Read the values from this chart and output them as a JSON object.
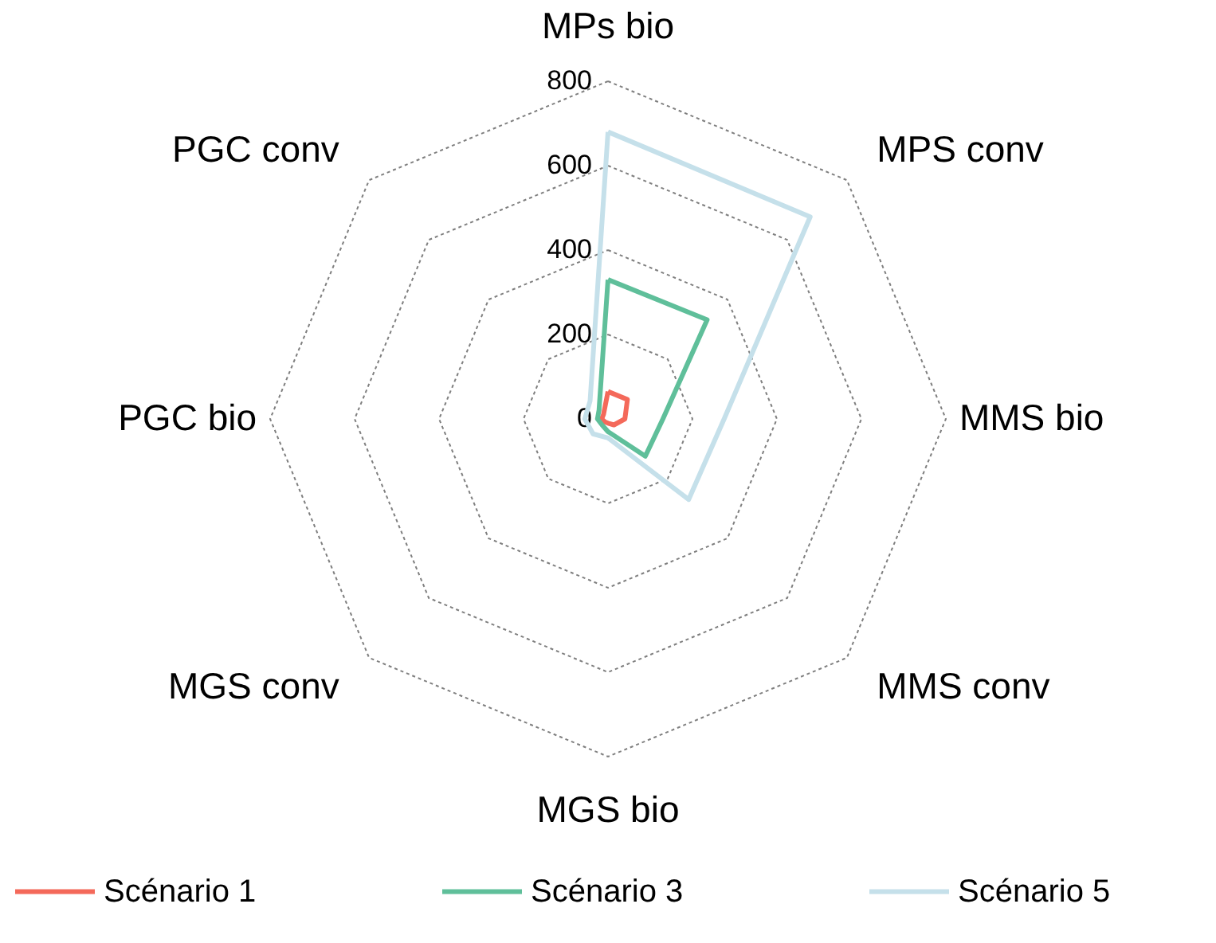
{
  "chart_data": {
    "type": "radar",
    "categories": [
      "MPs bio",
      "MPS conv",
      "MMS bio",
      "MMS conv",
      "MGS bio",
      "MGS conv",
      "PGC bio",
      "PGC conv"
    ],
    "series": [
      {
        "name": "Scénario 1",
        "color": "#f4695a",
        "values": [
          65,
          65,
          40,
          20,
          10,
          10,
          15,
          15
        ]
      },
      {
        "name": "Scénario 3",
        "color": "#5fbf9a",
        "values": [
          330,
          332,
          130,
          125,
          30,
          20,
          25,
          30
        ]
      },
      {
        "name": "Scénario 5",
        "color": "#c5e0ea",
        "values": [
          680,
          677,
          275,
          270,
          45,
          50,
          55,
          60
        ]
      }
    ],
    "ylim": [
      0,
      800
    ],
    "yticks": [
      0,
      200,
      400,
      600,
      800
    ],
    "grid": true,
    "legend": "bottom"
  }
}
